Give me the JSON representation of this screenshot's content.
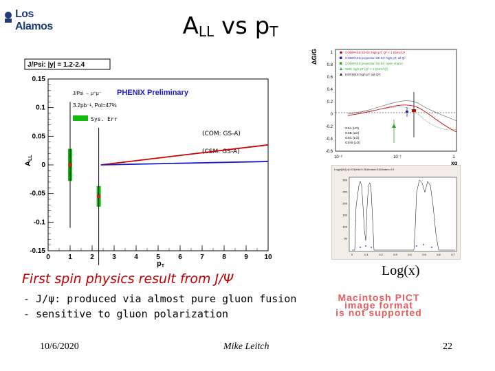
{
  "header": {
    "logo_text": "Los Alamos",
    "title_main": "A",
    "title_sub": "LL",
    "title_mid": " vs p",
    "title_sub2": "T"
  },
  "main_plot": {
    "box_label": "J/Psi: |y| = 1.2-2.4",
    "reaction": "J/Psi → μ⁺μ⁻",
    "brand": "PHENIX Preliminary",
    "lumi": "3.2pb⁻¹, Pol=47%",
    "sys_label": "Sys. Err",
    "com_label": "(COM: GS-A)",
    "csm_label": "(CSM: GS-A)",
    "ylabel": "A",
    "ylabel_sub": "LL",
    "xlabel": "p",
    "xlabel_sub": "T",
    "y_ticks": [
      "0.15",
      "0.1",
      "0.05",
      "0",
      "-0.05",
      "-0.1",
      "-0.15"
    ],
    "x_ticks": [
      "0",
      "1",
      "2",
      "3",
      "4",
      "5",
      "6",
      "7",
      "8",
      "9",
      "10"
    ],
    "colors": {
      "com": "#cc0000",
      "csm": "#1a1acc",
      "sys": "#11bb11",
      "point": "#cc2222"
    }
  },
  "chart_data": [
    {
      "type": "scatter",
      "title": "",
      "xlabel": "pT",
      "ylabel": "ALL",
      "xlim": [
        0,
        10
      ],
      "ylim": [
        -0.15,
        0.15
      ],
      "series": [
        {
          "name": "",
          "x": [
            1.0,
            2.3
          ],
          "y": [
            0.0,
            -0.055
          ],
          "yerr": [
            0.11,
            0.12
          ],
          "sys": [
            0.028,
            0.018
          ]
        }
      ],
      "curves": [
        {
          "name": "(COM: GS-A)",
          "x": [
            2.4,
            10
          ],
          "y": [
            0.0,
            0.035
          ]
        },
        {
          "name": "(CSM: GS-A)",
          "x": [
            2.4,
            10
          ],
          "y": [
            0.0,
            0.006
          ]
        }
      ]
    },
    {
      "type": "line",
      "title": "",
      "xlabel": "xg",
      "ylabel": "ΔG/G",
      "xlim": [
        0.01,
        1
      ],
      "ylim": [
        -0.6,
        1.0
      ],
      "x_ticks": [
        "10⁻²",
        "10⁻¹",
        "1"
      ],
      "y_ticks": [
        "1",
        "0.8",
        "0.6",
        "0.4",
        "0.2",
        "0",
        "-0.2",
        "-0.4",
        "-0.6"
      ],
      "legend": [
        "COMPASS 02-03: high pT, Q² < 1 (GeV/c)²",
        "COMPASS projection 02-04: high pT, all Q²",
        "COMPASS projection 02-04: open charm",
        "SMC high pT (Q² > 1 (GeV/c)²)",
        "HERMES high pT (all Q²)"
      ],
      "legend_lower": [
        "GSA (LO)",
        "GSB (LO)",
        "GSC (LO)",
        "GS-B (LO)"
      ],
      "legend_colors": [
        "#cc0000",
        "#2222cc",
        "#22aa22",
        "#22aa22",
        "#222222"
      ]
    },
    {
      "type": "bar",
      "title": "",
      "y_ticks": [
        "300",
        "250",
        "200",
        "150",
        "100",
        "50"
      ],
      "x_ticks": [
        "0",
        "0.1",
        "0.2",
        "0.3",
        "0.4",
        "0.5",
        "0.6",
        "0.7"
      ]
    }
  ],
  "right": {
    "logx_label": "Log(x)",
    "histo_header": "Log(x)|Ib( |x|<0.5)eta>0.2&&mass>2&&mass<4.0"
  },
  "body": {
    "first_spin": "First spin physics result from J/Ψ",
    "bullet1": "- J/ψ: produced via almost pure gluon fusion",
    "bullet2": "- sensitive to gluon polarization"
  },
  "pict_text": [
    "Macintosh PICT",
    "image format",
    "is not supported"
  ],
  "footer": {
    "date": "10/6/2020",
    "author": "Mike Leitch",
    "page": "22"
  }
}
